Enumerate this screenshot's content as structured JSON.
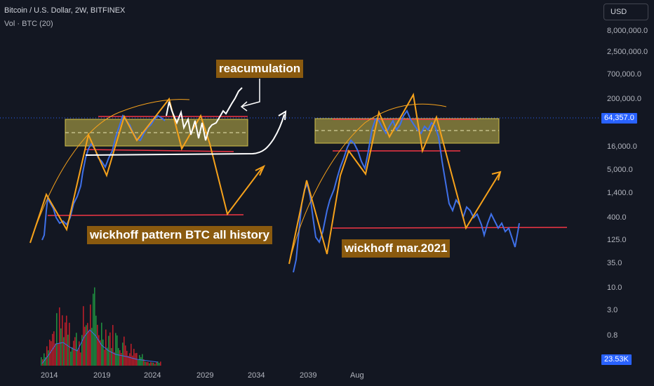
{
  "header": {
    "symbol_line": "Bitcoin / U.S. Dollar, 2W, BITFINEX",
    "indicator_line": "Vol · BTC (20)"
  },
  "currency_button": "USD",
  "price_axis": {
    "labels": [
      "8,000,000.0",
      "2,500,000.0",
      "700,000.0",
      "200,000.0",
      "16,000.0",
      "5,000.0",
      "1,400.0",
      "400.0",
      "125.0",
      "35.0",
      "10.0",
      "3.0",
      "0.8"
    ],
    "scale": "log"
  },
  "time_axis": {
    "labels": [
      "2014",
      "2019",
      "2024",
      "2029",
      "2034",
      "2039",
      "Aug"
    ]
  },
  "last_price": {
    "label": "64,357.0",
    "color": "#2962ff"
  },
  "volume_value": {
    "label": "23.53K",
    "color": "#2962ff"
  },
  "annotations": {
    "reaccumulation": "reacumulation",
    "pattern_history": "wickhoff pattern BTC all history",
    "pattern_2021": "wickhoff mar.2021"
  },
  "colors": {
    "background": "#131722",
    "price_line": "#3f70e8",
    "drawing_orange": "#f7a21b",
    "support_red": "#f23645",
    "range_box": "#c8b94a",
    "projection_white": "#ffffff",
    "volume_up": "#1e8c3f",
    "volume_down": "#b81e2a",
    "label_background": "#8a5a0f"
  },
  "chart_data": {
    "type": "line",
    "title": "Bitcoin / U.S. Dollar, 2W, BITFINEX",
    "y_scale": "log",
    "series": [
      {
        "name": "Bitcoin / U.S. Dollar",
        "x": [
          "2013",
          "2014",
          "2015",
          "2016",
          "2017",
          "2018",
          "2019",
          "2020",
          "2021",
          "2022",
          "2023",
          "2024"
        ],
        "y": [
          140,
          700,
          300,
          400,
          2000,
          6000,
          8000,
          9000,
          55000,
          20000,
          26000,
          64357
        ]
      }
    ],
    "volume": {
      "name": "Vol · BTC (20)",
      "last": "23.53K"
    }
  }
}
